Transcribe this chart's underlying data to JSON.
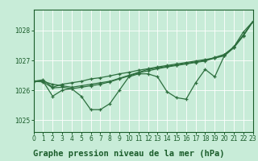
{
  "background_color": "#c8ecd8",
  "grid_color": "#ffffff",
  "line_color": "#2d6e3e",
  "title": "Graphe pression niveau de la mer (hPa)",
  "xlim": [
    0,
    23
  ],
  "ylim": [
    1024.6,
    1028.7
  ],
  "yticks": [
    1025,
    1026,
    1027,
    1028
  ],
  "xticks": [
    0,
    1,
    2,
    3,
    4,
    5,
    6,
    7,
    8,
    9,
    10,
    11,
    12,
    13,
    14,
    15,
    16,
    17,
    18,
    19,
    20,
    21,
    22,
    23
  ],
  "series": [
    [
      1026.3,
      1026.3,
      1025.8,
      1026.0,
      1026.05,
      1025.8,
      1025.35,
      1025.35,
      1025.55,
      1026.0,
      1026.45,
      1026.55,
      1026.55,
      1026.45,
      1025.95,
      1025.75,
      1025.7,
      1026.25,
      1026.7,
      1026.45,
      1027.15,
      1027.45,
      1027.95,
      1028.3
    ],
    [
      1026.3,
      1026.3,
      1026.2,
      1026.15,
      1026.1,
      1026.15,
      1026.2,
      1026.25,
      1026.3,
      1026.4,
      1026.5,
      1026.6,
      1026.7,
      1026.75,
      1026.8,
      1026.85,
      1026.9,
      1026.95,
      1027.0,
      1027.1,
      1027.2,
      1027.45,
      1027.85,
      1028.3
    ],
    [
      1026.3,
      1026.35,
      1026.1,
      1026.2,
      1026.25,
      1026.3,
      1026.38,
      1026.42,
      1026.48,
      1026.55,
      1026.6,
      1026.67,
      1026.72,
      1026.78,
      1026.83,
      1026.88,
      1026.93,
      1026.98,
      1027.03,
      1027.08,
      1027.15,
      1027.42,
      1027.82,
      1028.3
    ],
    [
      1026.3,
      1026.28,
      1026.08,
      1026.1,
      1026.05,
      1026.1,
      1026.15,
      1026.2,
      1026.28,
      1026.38,
      1026.48,
      1026.58,
      1026.65,
      1026.72,
      1026.78,
      1026.83,
      1026.88,
      1026.93,
      1026.98,
      1027.08,
      1027.18,
      1027.44,
      1027.83,
      1028.3
    ]
  ],
  "title_fontsize": 7.5,
  "tick_fontsize": 5.5,
  "title_color": "#1a5c2a",
  "tick_color": "#1a5c2a",
  "spine_color": "#1a5c2a"
}
